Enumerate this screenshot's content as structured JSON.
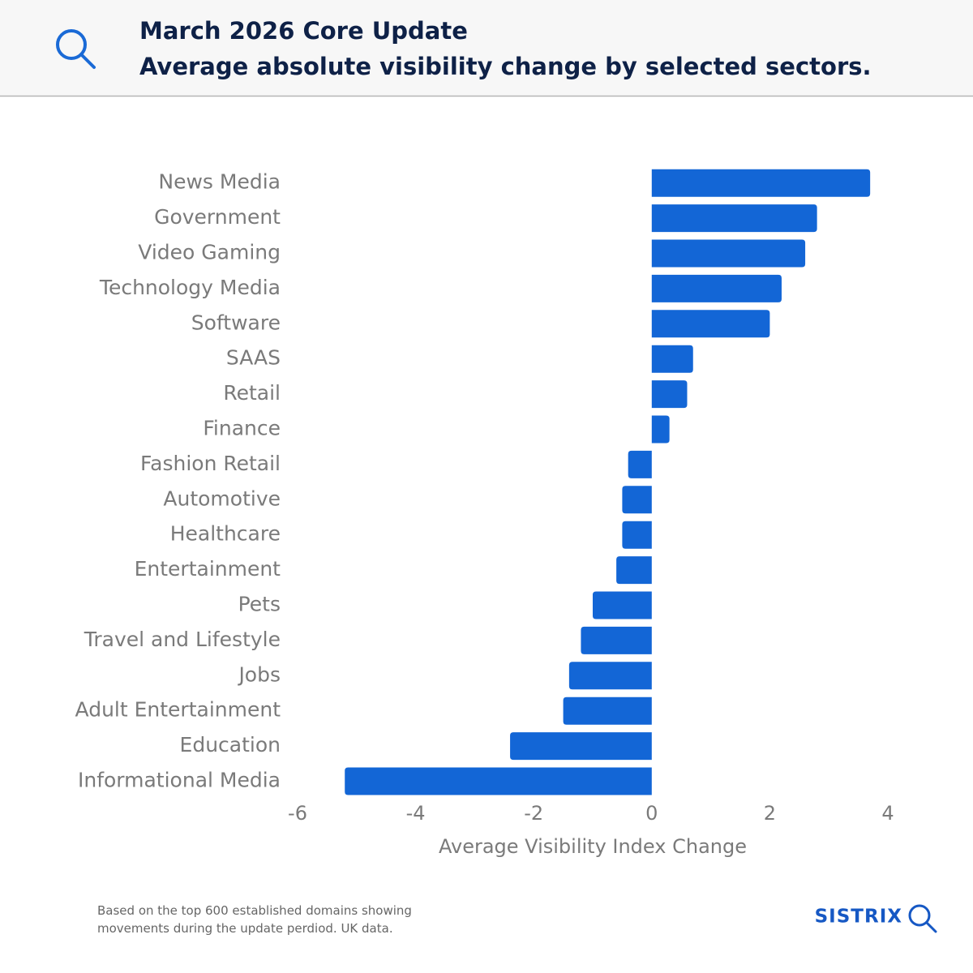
{
  "chart_data": {
    "type": "bar",
    "orientation": "horizontal",
    "title": "March 2026 Core Update",
    "subtitle": "Average absolute visibility change by selected sectors.",
    "xlabel": "Average Visibility Index Change",
    "categories": [
      "News Media",
      "Government",
      "Video Gaming",
      "Technology Media",
      "Software",
      "SAAS",
      "Retail",
      "Finance",
      "Fashion Retail",
      "Automotive",
      "Healthcare",
      "Entertainment",
      "Pets",
      "Travel and Lifestyle",
      "Jobs",
      "Adult Entertainment",
      "Education",
      "Informational Media"
    ],
    "values": [
      3.7,
      2.8,
      2.6,
      2.2,
      2.0,
      0.7,
      0.6,
      0.3,
      -0.4,
      -0.5,
      -0.5,
      -0.6,
      -1.0,
      -1.2,
      -1.4,
      -1.5,
      -2.4,
      -5.2
    ],
    "color": "#1366d6",
    "xlim": [
      -6,
      4
    ],
    "xticks": [
      -6,
      -4,
      -2,
      0,
      2,
      4
    ],
    "grid": false
  },
  "footnote": "Based on the top 600 established domains showing movements during the update perdiod. UK data.",
  "brand": "SISTRIX"
}
